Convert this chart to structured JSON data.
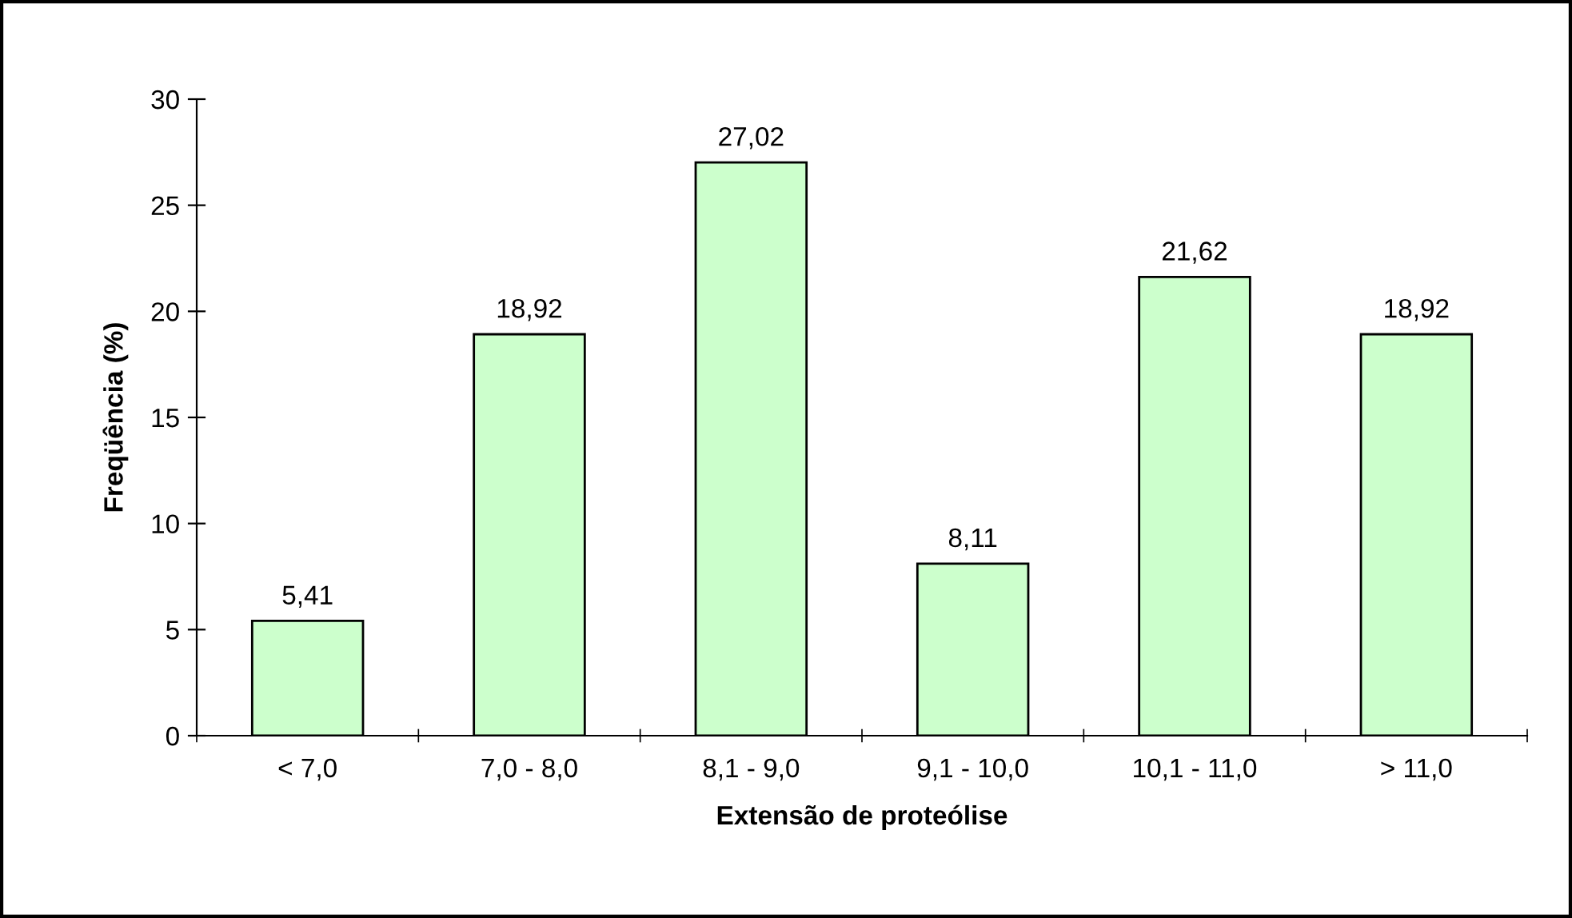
{
  "chart_data": {
    "type": "bar",
    "xlabel": "Extensão de proteólise",
    "ylabel": "Freqüência (%)",
    "categories": [
      "< 7,0",
      "7,0 - 8,0",
      "8,1 - 9,0",
      "9,1 - 10,0",
      "10,1 - 11,0",
      "> 11,0"
    ],
    "values": [
      5.41,
      18.92,
      27.02,
      8.11,
      21.62,
      18.92
    ],
    "value_labels": [
      "5,41",
      "18,92",
      "27,02",
      "8,11",
      "21,62",
      "18,92"
    ],
    "color": "#ccffcc",
    "ylim": [
      0,
      30
    ],
    "yticks": [
      0,
      5,
      10,
      15,
      20,
      25,
      30
    ],
    "grid": false,
    "legend": false
  }
}
